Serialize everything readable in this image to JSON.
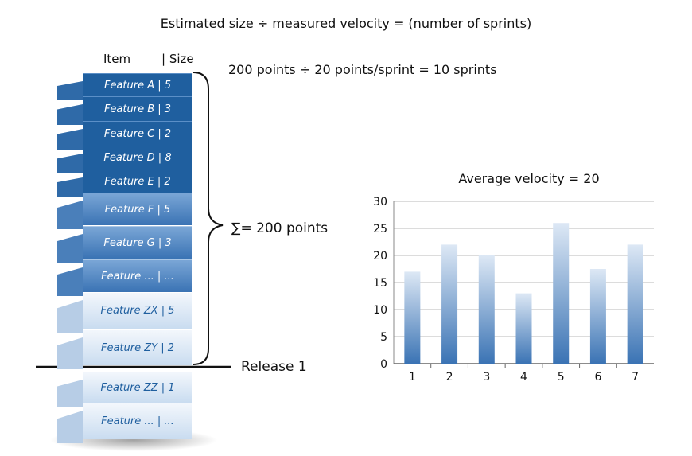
{
  "formula": "Estimated size ÷ measured velocity = (number of sprints)",
  "calculation": "200 points ÷ 20 points/sprint = 10 sprints",
  "backlog": {
    "header_item": "Item",
    "header_size": "| Size",
    "sum_label": "∑= 200 points",
    "release_label": "Release 1",
    "features": [
      {
        "label": "Feature A  |  5",
        "style": "dark"
      },
      {
        "label": "Feature B  |  3",
        "style": "dark"
      },
      {
        "label": "Feature C  |  2",
        "style": "dark"
      },
      {
        "label": "Feature D  |  8",
        "style": "dark"
      },
      {
        "label": "Feature E  |  2",
        "style": "dark"
      },
      {
        "label": "Feature F  |  5",
        "style": "mid"
      },
      {
        "label": "Feature G  |  3",
        "style": "mid"
      },
      {
        "label": "Feature ...  | ...",
        "style": "mid"
      },
      {
        "label": "Feature ZX | 5",
        "style": "light"
      },
      {
        "label": "Feature ZY | 2",
        "style": "light"
      },
      {
        "label": "Feature ZZ | 1",
        "style": "light"
      },
      {
        "label": "Feature ...  | ...",
        "style": "light"
      }
    ]
  },
  "colors": {
    "dark": "#1f5f9f",
    "bar_top": "#dde8f5",
    "bar_bottom": "#3a73b4"
  },
  "chart_data": {
    "type": "bar",
    "title": "Average velocity = 20",
    "categories": [
      "1",
      "2",
      "3",
      "4",
      "5",
      "6",
      "7"
    ],
    "values": [
      17,
      22,
      20,
      13,
      26,
      17.5,
      22
    ],
    "ylim": [
      0,
      30
    ],
    "yticks": [
      "0",
      "5",
      "10",
      "15",
      "20",
      "25",
      "30"
    ],
    "grid": true
  }
}
